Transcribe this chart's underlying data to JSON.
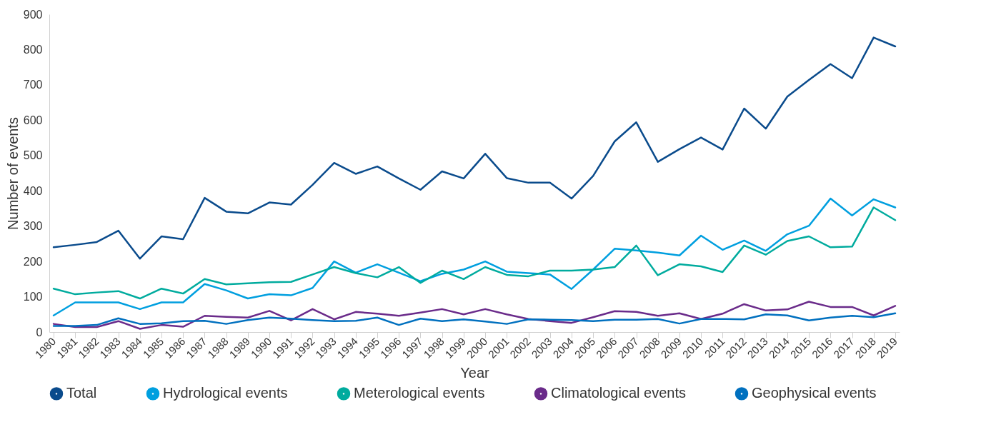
{
  "chart_data": {
    "type": "line",
    "xlabel": "Year",
    "ylabel": "Number of events",
    "legend": "bottom",
    "categories": [
      "1980",
      "1981",
      "1982",
      "1983",
      "1984",
      "1985",
      "1986",
      "1987",
      "1988",
      "1989",
      "1990",
      "1991",
      "1992",
      "1993",
      "1994",
      "1995",
      "1996",
      "1997",
      "1998",
      "1999",
      "2000",
      "2001",
      "2002",
      "2003",
      "2004",
      "2005",
      "2006",
      "2007",
      "2008",
      "2009",
      "2010",
      "2011",
      "2012",
      "2013",
      "2014",
      "2015",
      "2016",
      "2017",
      "2018",
      "2019"
    ],
    "ylim": [
      0,
      900
    ],
    "yticks": [
      0,
      100,
      200,
      300,
      400,
      500,
      600,
      700,
      800,
      900
    ],
    "series": [
      {
        "name": "Total",
        "color": "#0a4b8c",
        "values": [
          240,
          247,
          255,
          287,
          208,
          271,
          263,
          380,
          341,
          336,
          367,
          361,
          417,
          479,
          448,
          469,
          435,
          403,
          455,
          435,
          505,
          436,
          423,
          423,
          378,
          442,
          540,
          594,
          482,
          518,
          551,
          517,
          633,
          576,
          667,
          714,
          759,
          719,
          834,
          809
        ]
      },
      {
        "name": "Hydrological events",
        "color": "#009fdf",
        "values": [
          47,
          84,
          84,
          84,
          65,
          84,
          84,
          136,
          118,
          95,
          107,
          104,
          125,
          200,
          168,
          192,
          168,
          144,
          165,
          177,
          200,
          171,
          167,
          163,
          122,
          177,
          236,
          231,
          225,
          217,
          273,
          233,
          259,
          230,
          277,
          301,
          378,
          330,
          376,
          353
        ]
      },
      {
        "name": "Meterological events",
        "color": "#00ab9e",
        "values": [
          123,
          107,
          112,
          116,
          95,
          123,
          109,
          150,
          135,
          138,
          141,
          142,
          163,
          184,
          167,
          155,
          184,
          139,
          174,
          150,
          184,
          162,
          158,
          174,
          174,
          177,
          184,
          245,
          161,
          192,
          186,
          170,
          245,
          219,
          258,
          271,
          240,
          242,
          353,
          317
        ]
      },
      {
        "name": "Climatological events",
        "color": "#6a2b8a",
        "values": [
          23,
          14,
          14,
          31,
          9,
          20,
          15,
          46,
          43,
          41,
          60,
          33,
          65,
          36,
          57,
          52,
          46,
          55,
          65,
          50,
          65,
          50,
          37,
          31,
          26,
          42,
          59,
          57,
          46,
          53,
          37,
          52,
          79,
          61,
          64,
          86,
          71,
          71,
          47,
          74
        ]
      },
      {
        "name": "Geophysical events",
        "color": "#0070bf",
        "values": [
          17,
          17,
          20,
          39,
          23,
          25,
          31,
          32,
          23,
          34,
          41,
          38,
          34,
          31,
          32,
          41,
          20,
          38,
          31,
          36,
          30,
          23,
          36,
          35,
          34,
          31,
          35,
          35,
          37,
          24,
          37,
          37,
          36,
          50,
          47,
          33,
          41,
          46,
          42,
          53
        ]
      }
    ]
  }
}
